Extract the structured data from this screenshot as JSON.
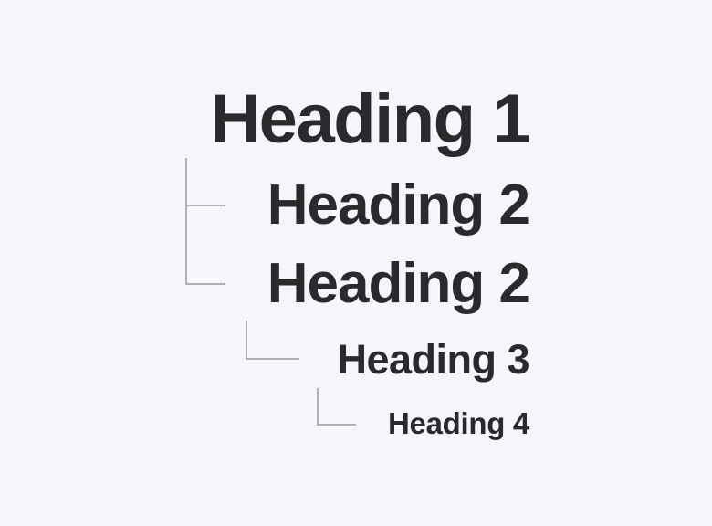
{
  "headings": {
    "h1": "Heading 1",
    "h2_first": "Heading 2",
    "h2_second": "Heading 2",
    "h3": "Heading 3",
    "h4": "Heading 4"
  },
  "colors": {
    "background": "#f5f6fa",
    "text": "#2a2a2d",
    "connector": "#9a9aa2"
  }
}
